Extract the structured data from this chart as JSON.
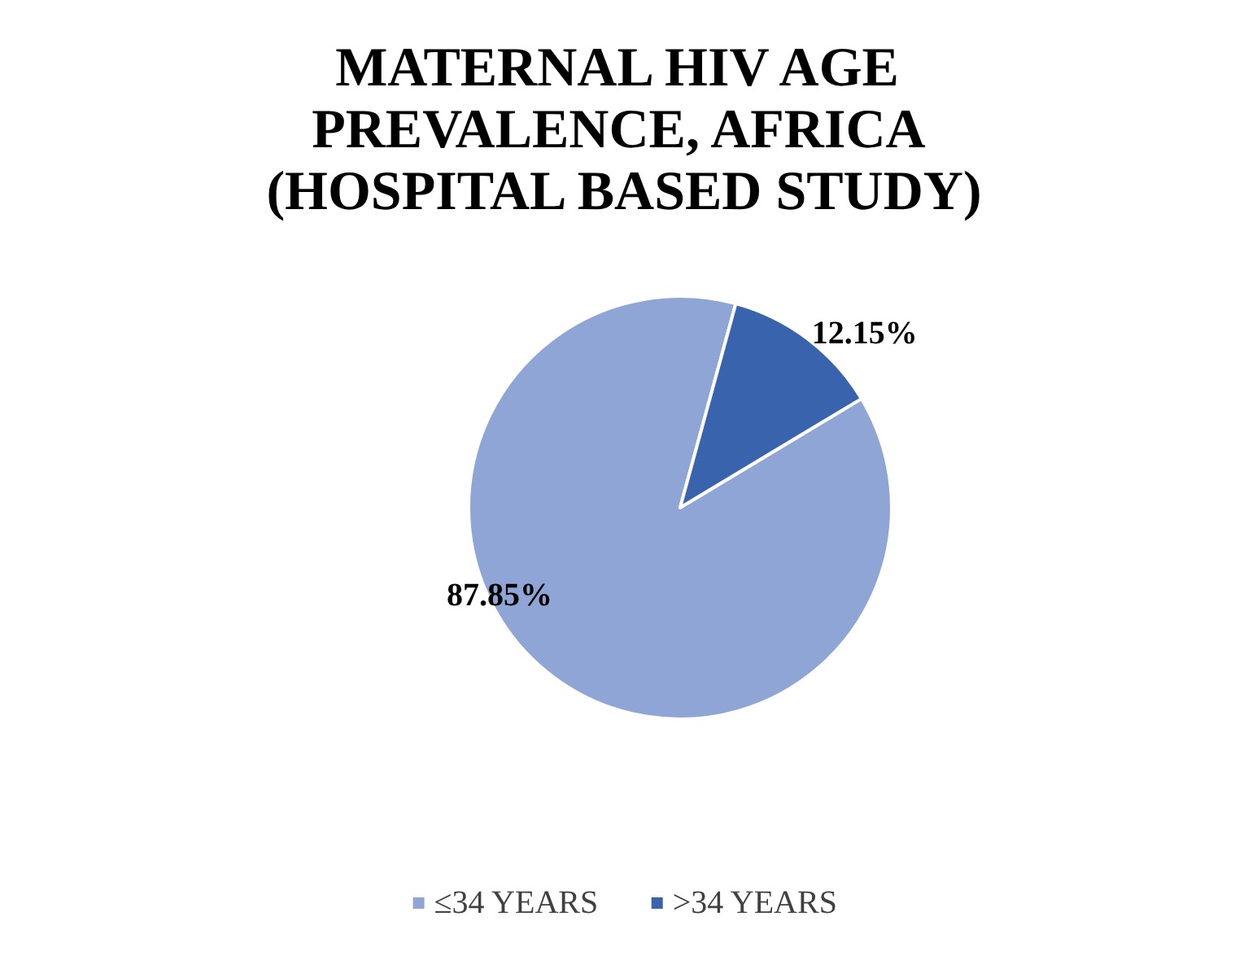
{
  "chart_data": {
    "type": "pie",
    "title": "MATERNAL HIV AGE PREVALENCE, AFRICA (HOSPITAL BASED STUDY)",
    "categories": [
      "≤34 YEARS",
      ">34 YEARS"
    ],
    "values": [
      87.85,
      12.15
    ],
    "colors": [
      "#8fa5d6",
      "#3a63ad"
    ],
    "value_labels": [
      "87.85%",
      "12.15%"
    ],
    "legend": "bottom"
  }
}
